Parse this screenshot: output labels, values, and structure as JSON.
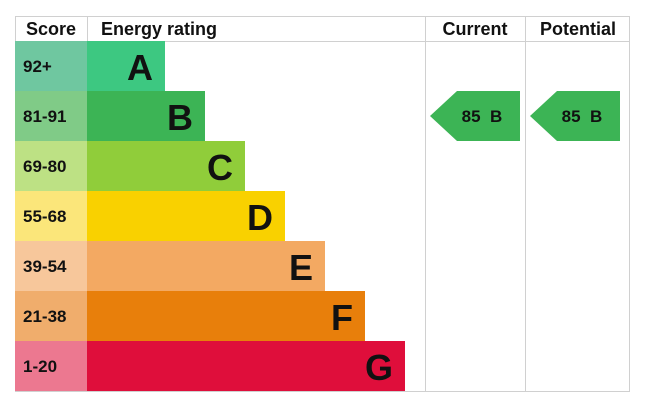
{
  "chart_data": {
    "type": "bar",
    "headers": {
      "score": "Score",
      "rating": "Energy rating",
      "current": "Current",
      "potential": "Potential"
    },
    "bands": [
      {
        "score": "92+",
        "letter": "A",
        "color": "#3dc881",
        "score_color": "#6fc7a0"
      },
      {
        "score": "81-91",
        "letter": "B",
        "color": "#3cb455",
        "score_color": "#80cb87"
      },
      {
        "score": "69-80",
        "letter": "C",
        "color": "#90cd3a",
        "score_color": "#bde184"
      },
      {
        "score": "55-68",
        "letter": "D",
        "color": "#f9d100",
        "score_color": "#fbe67a"
      },
      {
        "score": "39-54",
        "letter": "E",
        "color": "#f3a962",
        "score_color": "#f7c79b"
      },
      {
        "score": "21-38",
        "letter": "F",
        "color": "#e87f0b",
        "score_color": "#f0ad6c"
      },
      {
        "score": "1-20",
        "letter": "G",
        "color": "#df0e3b",
        "score_color": "#ec7890"
      }
    ],
    "current": {
      "value": 85,
      "letter": "B",
      "label": "85  B",
      "color": "#3cb455"
    },
    "potential": {
      "value": 85,
      "letter": "B",
      "label": "85  B",
      "color": "#3cb455"
    }
  }
}
